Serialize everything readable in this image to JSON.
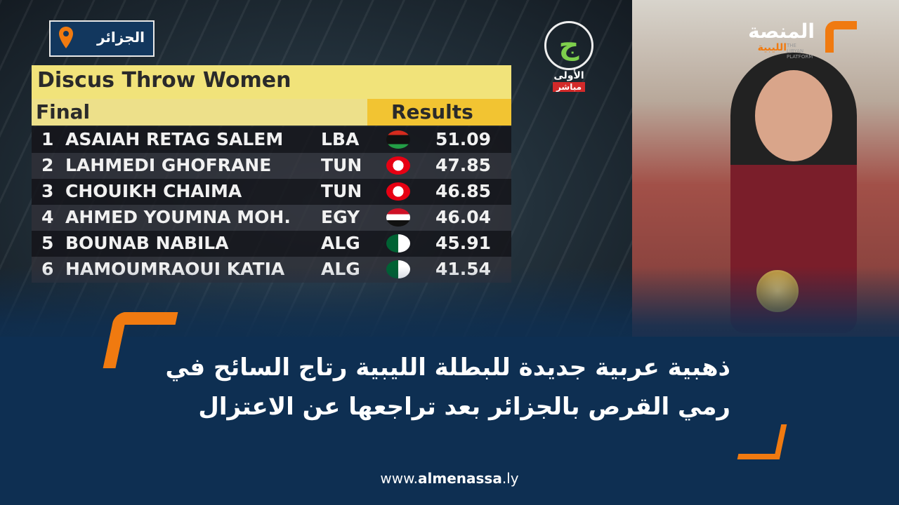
{
  "location_badge": {
    "label": "الجزائر",
    "icon": "map-pin-icon",
    "color": "#f07a10"
  },
  "tv_logo": {
    "glyph": "ج",
    "name": "الأولى",
    "live": "مباشر"
  },
  "brand": {
    "arabic_top": "المنصة",
    "arabic_bottom": "الليبية",
    "english": "THE LIBYAN PLATFORM",
    "accent": "#f07a10"
  },
  "scoreboard": {
    "title": "Discus Throw Women",
    "round": "Final",
    "results_header": "Results",
    "rows": [
      {
        "pos": "1",
        "name": "ASAIAH RETAG SALEM",
        "country": "LBA",
        "score": "51.09"
      },
      {
        "pos": "2",
        "name": "LAHMEDI GHOFRANE",
        "country": "TUN",
        "score": "47.85"
      },
      {
        "pos": "3",
        "name": "CHOUIKH CHAIMA",
        "country": "TUN",
        "score": "46.85"
      },
      {
        "pos": "4",
        "name": "AHMED YOUMNA MOH.",
        "country": "EGY",
        "score": "46.04"
      },
      {
        "pos": "5",
        "name": "BOUNAB NABILA",
        "country": "ALG",
        "score": "45.91"
      },
      {
        "pos": "6",
        "name": "HAMOUMRAOUI KATIA",
        "country": "ALG",
        "score": "41.54"
      }
    ]
  },
  "headline": {
    "line1": "ذهبية عربية جديدة للبطلة الليبية رتاج السائح في",
    "line2": "رمي القرص بالجزائر بعد تراجعها عن الاعتزال"
  },
  "url": {
    "prefix": "www.",
    "domain": "almenassa",
    "suffix": ".ly"
  },
  "colors": {
    "background": "#0e2f52",
    "accent": "#f07a10"
  }
}
